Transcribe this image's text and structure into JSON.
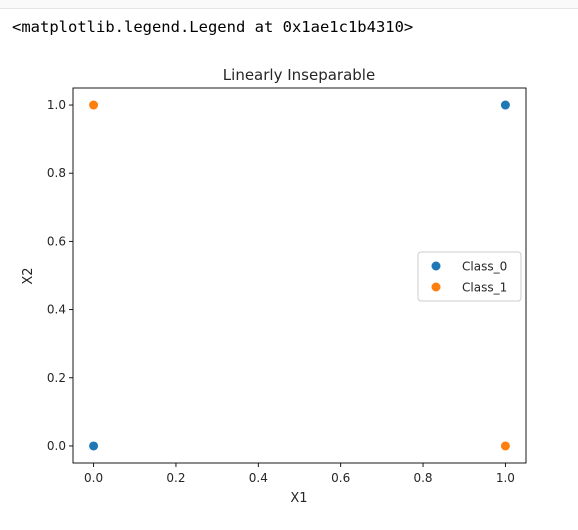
{
  "output": {
    "text": "<matplotlib.legend.Legend at 0x1ae1c1b4310>"
  },
  "chart_data": {
    "type": "scatter",
    "title": "Linearly Inseparable",
    "xlabel": "X1",
    "ylabel": "X2",
    "xlim": [
      -0.05,
      1.05
    ],
    "ylim": [
      -0.05,
      1.05
    ],
    "xticks": [
      "0.0",
      "0.2",
      "0.4",
      "0.6",
      "0.8",
      "1.0"
    ],
    "yticks": [
      "0.0",
      "0.2",
      "0.4",
      "0.6",
      "0.8",
      "1.0"
    ],
    "grid": false,
    "legend_position": "center-right",
    "series": [
      {
        "name": "Class_0",
        "color": "#1f77b4",
        "points": [
          [
            0.0,
            0.0
          ],
          [
            1.0,
            1.0
          ]
        ]
      },
      {
        "name": "Class_1",
        "color": "#ff7f0e",
        "points": [
          [
            0.0,
            1.0
          ],
          [
            1.0,
            0.0
          ]
        ]
      }
    ]
  }
}
